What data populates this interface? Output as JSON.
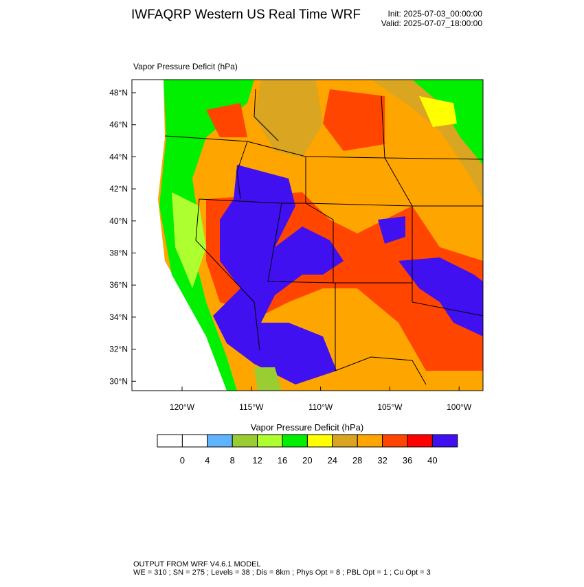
{
  "header": {
    "title": "IWFAQRP Western US Real Time WRF",
    "init": "Init: 2025-07-03_00:00:00",
    "valid": "Valid: 2025-07-07_18:00:00"
  },
  "map": {
    "label": "Vapor Pressure Deficit   (hPa)",
    "lat_labels": [
      "48°N",
      "46°N",
      "44°N",
      "42°N",
      "40°N",
      "38°N",
      "36°N",
      "34°N",
      "32°N",
      "30°N"
    ],
    "lon_labels": [
      "120°W",
      "115°W",
      "110°W",
      "105°W",
      "100°W"
    ]
  },
  "colorbar": {
    "title": "Vapor Pressure Deficit  (hPa)",
    "colors": [
      "#ffffff",
      "#ffffff",
      "#60b4ff",
      "#9acd32",
      "#adff2f",
      "#00f000",
      "#ffff00",
      "#daa520",
      "#ffa500",
      "#ff4500",
      "#ff0000",
      "#4010f0"
    ],
    "labels": [
      0,
      4,
      8,
      12,
      16,
      20,
      24,
      28,
      32,
      36,
      40
    ]
  },
  "footer": {
    "line1": "OUTPUT FROM WRF V4.6.1 MODEL",
    "line2": "WE = 310 ; SN = 275 ; Levels = 38 ; Dis = 8km ; Phys Opt = 8 ; PBL Opt = 1 ; Cu Opt = 3"
  }
}
